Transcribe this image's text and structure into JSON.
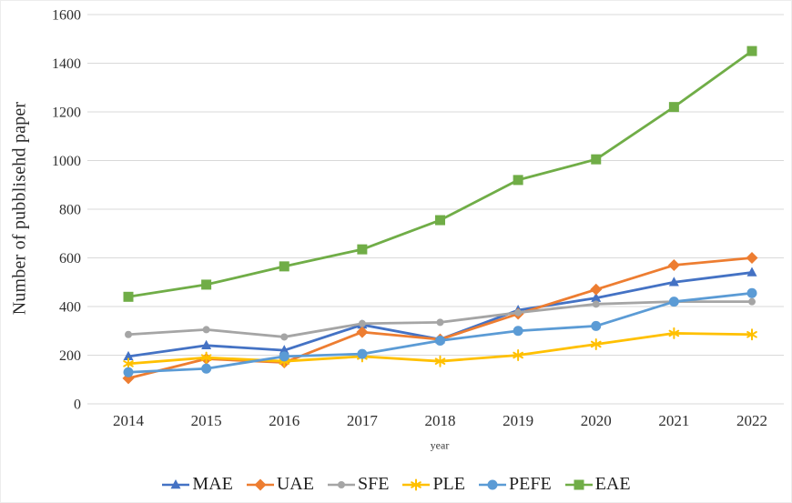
{
  "chart_data": {
    "type": "line",
    "x": [
      "2014",
      "2015",
      "2016",
      "2017",
      "2018",
      "2019",
      "2020",
      "2021",
      "2022"
    ],
    "xlabel": "year",
    "ylabel": "Number of pubblisehd paper",
    "ylim": [
      0,
      1600
    ],
    "ytick_step": 200,
    "grid": true,
    "gridline_color": "#d9d9d9",
    "tick_label_color": "#2e2e2e",
    "legend_position": "bottom",
    "series": [
      {
        "name": "MAE",
        "color": "#4472C4",
        "marker": "triangle",
        "values": [
          195,
          240,
          220,
          325,
          265,
          385,
          435,
          500,
          540
        ]
      },
      {
        "name": "UAE",
        "color": "#ED7D31",
        "marker": "diamond",
        "values": [
          105,
          185,
          170,
          295,
          265,
          370,
          470,
          570,
          600
        ]
      },
      {
        "name": "SFE",
        "color": "#A5A5A5",
        "marker": "circle-small",
        "values": [
          285,
          305,
          275,
          330,
          335,
          375,
          410,
          420,
          420
        ]
      },
      {
        "name": "PLE",
        "color": "#FFC000",
        "marker": "asterisk",
        "values": [
          165,
          190,
          175,
          195,
          175,
          200,
          245,
          290,
          285
        ]
      },
      {
        "name": "PEFE",
        "color": "#5B9BD5",
        "marker": "circle",
        "values": [
          130,
          145,
          195,
          205,
          260,
          300,
          320,
          420,
          455
        ]
      },
      {
        "name": "EAE",
        "color": "#70AD47",
        "marker": "square",
        "values": [
          440,
          490,
          565,
          635,
          755,
          920,
          1005,
          1220,
          1450
        ]
      }
    ]
  }
}
